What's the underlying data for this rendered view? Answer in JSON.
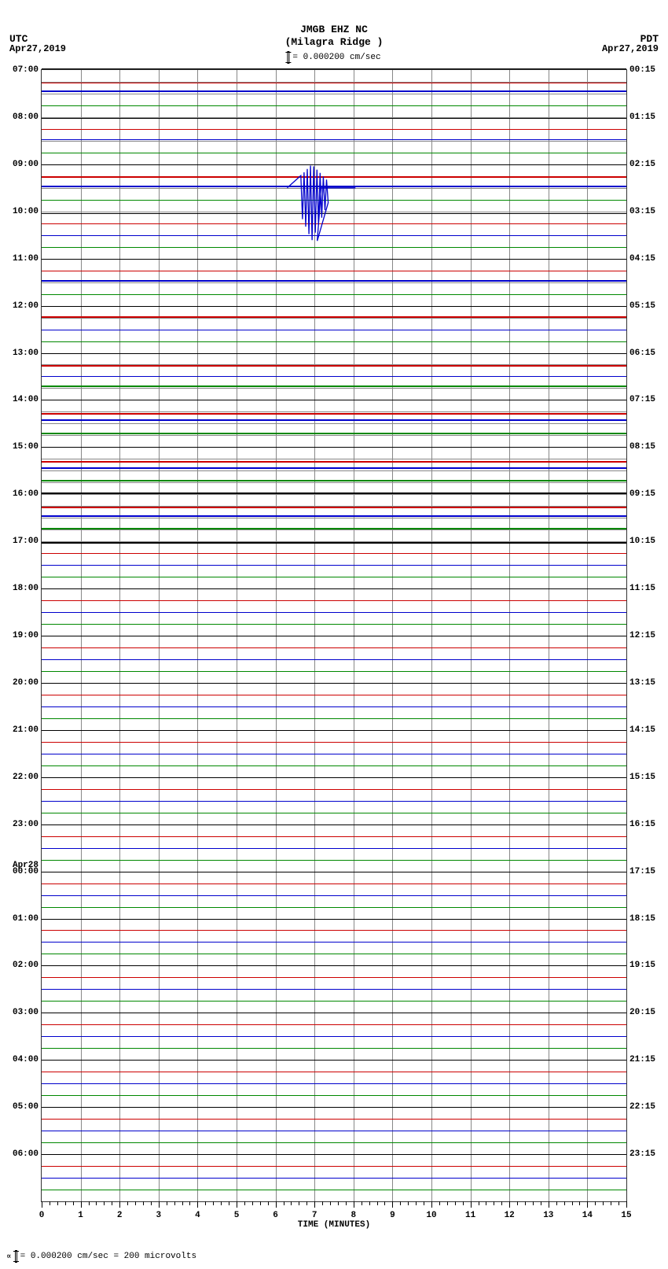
{
  "header": {
    "station_code": "JMGB EHZ NC",
    "location": "(Milagra Ridge )",
    "scale_text": "= 0.000200 cm/sec"
  },
  "tz": {
    "left_label": "UTC",
    "left_date": "Apr27,2019",
    "right_label": "PDT",
    "right_date": "Apr27,2019"
  },
  "plot": {
    "rows": 96,
    "row_colors": [
      "#000000",
      "#cc0000",
      "#0000cc",
      "#008800"
    ],
    "grid_color": "#888888",
    "background": "#ffffff",
    "x_minutes": 15,
    "x_major_ticks": [
      0,
      1,
      2,
      3,
      4,
      5,
      6,
      7,
      8,
      9,
      10,
      11,
      12,
      13,
      14,
      15
    ],
    "x_axis_title": "TIME (MINUTES)",
    "left_hour_labels": [
      {
        "row": 0,
        "text": "07:00"
      },
      {
        "row": 4,
        "text": "08:00"
      },
      {
        "row": 8,
        "text": "09:00"
      },
      {
        "row": 12,
        "text": "10:00"
      },
      {
        "row": 16,
        "text": "11:00"
      },
      {
        "row": 20,
        "text": "12:00"
      },
      {
        "row": 24,
        "text": "13:00"
      },
      {
        "row": 28,
        "text": "14:00"
      },
      {
        "row": 32,
        "text": "15:00"
      },
      {
        "row": 36,
        "text": "16:00"
      },
      {
        "row": 40,
        "text": "17:00"
      },
      {
        "row": 44,
        "text": "18:00"
      },
      {
        "row": 48,
        "text": "19:00"
      },
      {
        "row": 52,
        "text": "20:00"
      },
      {
        "row": 56,
        "text": "21:00"
      },
      {
        "row": 60,
        "text": "22:00"
      },
      {
        "row": 64,
        "text": "23:00"
      },
      {
        "row": 68,
        "text": "00:00",
        "date_above": "Apr28"
      },
      {
        "row": 72,
        "text": "01:00"
      },
      {
        "row": 76,
        "text": "02:00"
      },
      {
        "row": 80,
        "text": "03:00"
      },
      {
        "row": 84,
        "text": "04:00"
      },
      {
        "row": 88,
        "text": "05:00"
      },
      {
        "row": 92,
        "text": "06:00"
      }
    ],
    "right_hour_labels": [
      {
        "row": 0,
        "text": "00:15"
      },
      {
        "row": 4,
        "text": "01:15"
      },
      {
        "row": 8,
        "text": "02:15"
      },
      {
        "row": 12,
        "text": "03:15"
      },
      {
        "row": 16,
        "text": "04:15"
      },
      {
        "row": 20,
        "text": "05:15"
      },
      {
        "row": 24,
        "text": "06:15"
      },
      {
        "row": 28,
        "text": "07:15"
      },
      {
        "row": 32,
        "text": "08:15"
      },
      {
        "row": 36,
        "text": "09:15"
      },
      {
        "row": 40,
        "text": "10:15"
      },
      {
        "row": 44,
        "text": "11:15"
      },
      {
        "row": 48,
        "text": "12:15"
      },
      {
        "row": 52,
        "text": "13:15"
      },
      {
        "row": 56,
        "text": "14:15"
      },
      {
        "row": 60,
        "text": "15:15"
      },
      {
        "row": 64,
        "text": "16:15"
      },
      {
        "row": 68,
        "text": "17:15"
      },
      {
        "row": 72,
        "text": "18:15"
      },
      {
        "row": 76,
        "text": "19:15"
      },
      {
        "row": 80,
        "text": "20:15"
      },
      {
        "row": 84,
        "text": "21:15"
      },
      {
        "row": 88,
        "text": "22:15"
      },
      {
        "row": 92,
        "text": "23:15"
      }
    ],
    "trace_offsets": {
      "0": -2,
      "1": 1,
      "2": -4,
      "3": 0,
      "4": 1,
      "5": 0,
      "6": -2,
      "7": 0,
      "8": 0,
      "9": 0,
      "10": -3,
      "11": 0,
      "12": 2,
      "13": 0,
      "14": 0,
      "15": 0,
      "16": 0,
      "17": 0,
      "18": -3,
      "19": 0,
      "20": 0,
      "21": -2,
      "22": 0,
      "23": 0,
      "24": 0,
      "25": 1,
      "26": 0,
      "27": -3,
      "28": 0,
      "29": 2,
      "30": -5,
      "31": -3,
      "32": 0,
      "33": 3,
      "34": -4,
      "35": -3,
      "36": -2,
      "37": 1,
      "38": -3,
      "39": -2,
      "40": 1,
      "41": 0,
      "42": 0,
      "43": 0,
      "44": 0,
      "45": 0,
      "46": 0,
      "47": 0,
      "48": 0,
      "49": 0,
      "50": 0,
      "51": 0,
      "52": 0,
      "53": 0,
      "54": 0,
      "55": 0,
      "56": 0,
      "57": 0,
      "58": 0,
      "59": 0,
      "60": 0,
      "61": 0,
      "62": 0,
      "63": 0,
      "64": 0,
      "65": 0,
      "66": 0,
      "67": 0,
      "68": 0,
      "69": 0,
      "70": 0,
      "71": 0,
      "72": 0,
      "73": 0,
      "74": 0,
      "75": 0,
      "76": 0,
      "77": 0,
      "78": 0,
      "79": 0,
      "80": 0,
      "81": 0,
      "82": 0,
      "83": 0,
      "84": 0,
      "85": 0,
      "86": 0,
      "87": 0,
      "88": 0,
      "89": 0,
      "90": 0,
      "91": 0,
      "92": 0,
      "93": 0,
      "94": 0,
      "95": 0
    },
    "thick_traces": [
      2,
      9,
      10,
      18,
      21,
      25,
      27,
      29,
      30,
      31,
      33,
      34,
      35,
      36,
      37,
      38,
      39,
      40
    ],
    "event": {
      "row": 10,
      "minute": 7.0,
      "color": "#0000cc",
      "amplitude_rows_up": 2.0,
      "amplitude_rows_down": 4.5,
      "width_minutes": 0.35
    }
  },
  "footer": {
    "text": "= 0.000200 cm/sec =   200 microvolts",
    "prefix": "∝"
  }
}
